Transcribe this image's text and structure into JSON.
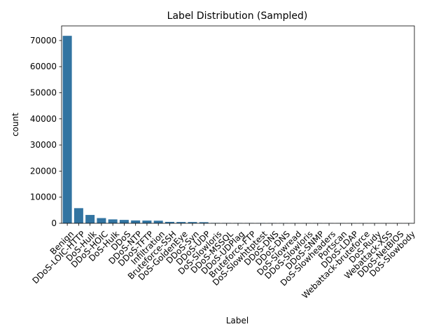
{
  "chart_data": {
    "type": "bar",
    "title": "Label Distribution (Sampled)",
    "xlabel": "Label",
    "ylabel": "count",
    "ylim": [
      0,
      75600
    ],
    "yticks": [
      0,
      10000,
      20000,
      30000,
      40000,
      50000,
      60000,
      70000
    ],
    "bar_color": "#3274a1",
    "categories": [
      "Benign",
      "DDoS-LOIC-HTTP",
      "DoS-Hulk",
      "DDoS-HOIC",
      "DoS-Hulk",
      "DDoS",
      "DDoS-NTP",
      "DDoS-TFTP",
      "Infiltration",
      "Bruteforce-SSH",
      "DoS-GoldenEye",
      "DDoS-Syn",
      "DDoS-UDP",
      "DoS-Slowloris",
      "DDoS-MSSQL",
      "DDoS-UDPlag",
      "Bruteforce-FTP",
      "DoS-Slowhttptest",
      "DDoS-DNS",
      "DDoS-DNS",
      "DoS-Slowread",
      "DDoS-Slowloris",
      "DDoS-SNMP",
      "DoS-Slowheaders",
      "Portscan",
      "DDoS-LDAP",
      "Webattack-bruteforce",
      "DoS-Rudy",
      "Webattack-XSS",
      "DDoS-NetBIOS",
      "DoS-Slowbody"
    ],
    "values": [
      71800,
      5800,
      3200,
      2000,
      1500,
      1300,
      1100,
      1050,
      1000,
      550,
      500,
      480,
      420,
      150,
      140,
      130,
      120,
      110,
      100,
      95,
      90,
      85,
      80,
      75,
      70,
      65,
      60,
      55,
      50,
      45,
      40
    ]
  }
}
